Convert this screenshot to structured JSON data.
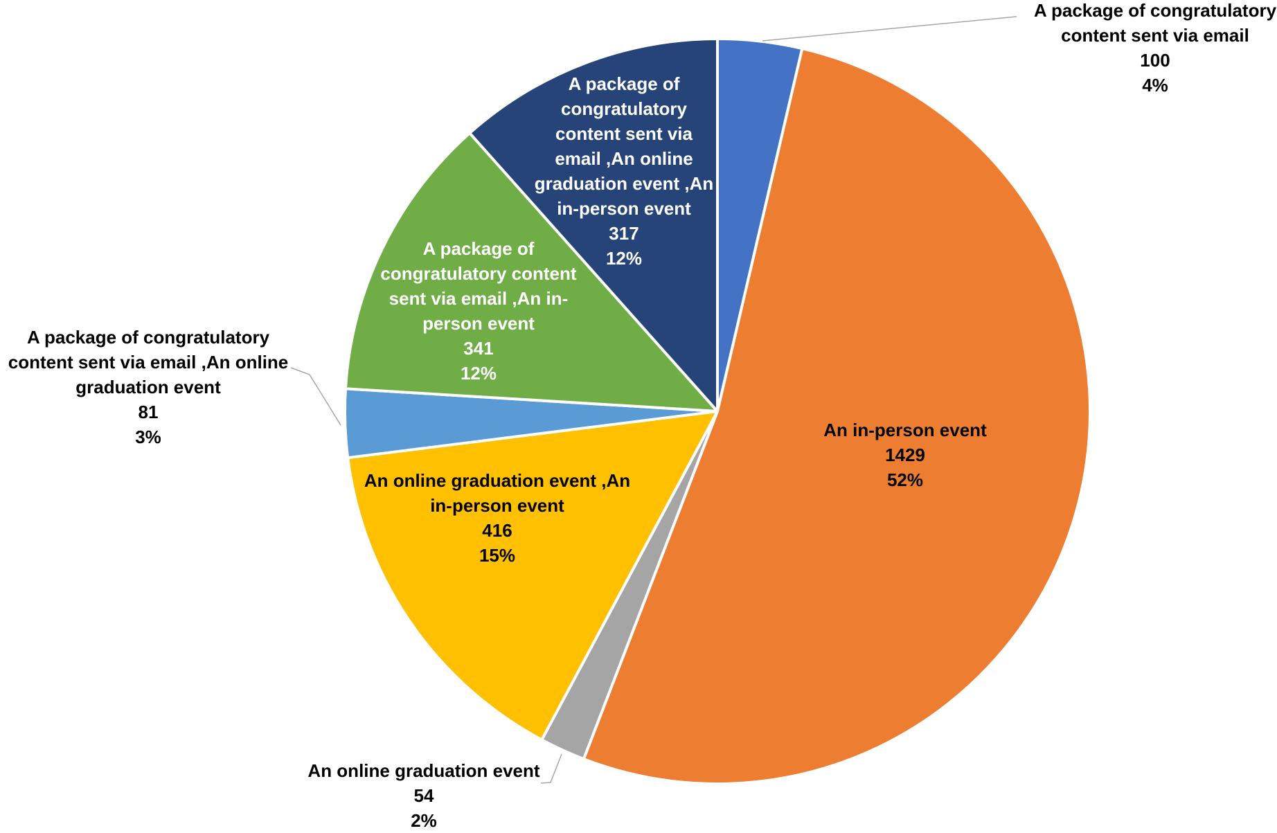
{
  "chart_data": {
    "type": "pie",
    "title": "",
    "slices": [
      {
        "name": "A package of congratulatory content sent via email",
        "label_lines": [
          "A package of congratulatory",
          "content sent via email"
        ],
        "value": 100,
        "percent_label": "4%",
        "color": "#4472C4",
        "label_color": "#000000"
      },
      {
        "name": "An in-person event",
        "label_lines": [
          "An in-person event"
        ],
        "value": 1429,
        "percent_label": "52%",
        "color": "#ED7D31",
        "label_color": "#000000"
      },
      {
        "name": "An online graduation event",
        "label_lines": [
          "An online graduation event"
        ],
        "value": 54,
        "percent_label": "2%",
        "color": "#A5A5A5",
        "label_color": "#000000"
      },
      {
        "name": "An online graduation event ,An in-person event",
        "label_lines": [
          "An online graduation event ,An",
          "in-person event"
        ],
        "value": 416,
        "percent_label": "15%",
        "color": "#FFC000",
        "label_color": "#000000"
      },
      {
        "name": "A package of congratulatory content sent via email ,An online graduation event",
        "label_lines": [
          "A package of congratulatory",
          "content sent via email ,An online",
          "graduation event"
        ],
        "value": 81,
        "percent_label": "3%",
        "color": "#5B9BD5",
        "label_color": "#000000"
      },
      {
        "name": "A package of congratulatory content sent via email ,An in-person event",
        "label_lines": [
          "A package of",
          "congratulatory content",
          "sent via email ,An in-",
          "person event"
        ],
        "value": 341,
        "percent_label": "12%",
        "color": "#70AD47",
        "label_color": "#ffffff"
      },
      {
        "name": "A package of congratulatory content sent via email ,An online graduation event ,An in-person event",
        "label_lines": [
          "A package of",
          "congratulatory",
          "content sent via",
          "email ,An online",
          "graduation event ,An",
          "in-person event"
        ],
        "value": 317,
        "percent_label": "12%",
        "color": "#264478",
        "label_color": "#ffffff"
      }
    ],
    "start_angle_deg": 0,
    "direction": "clockwise",
    "legend": "none",
    "slice_border_color": "#ffffff",
    "leader_line_color": "#A6A6A6"
  }
}
